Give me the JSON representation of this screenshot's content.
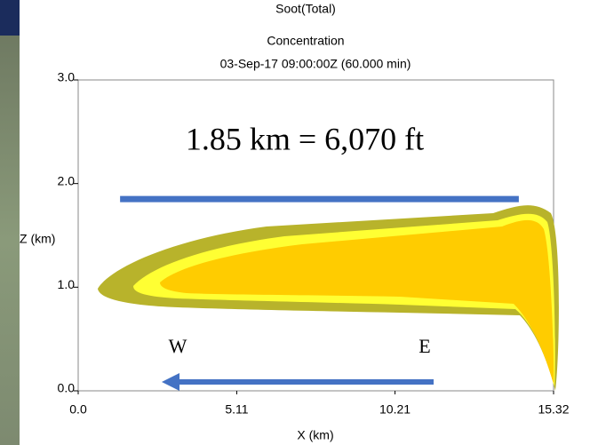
{
  "chart_data": {
    "type": "plume",
    "title": "Soot(Total)",
    "subtitle": "Concentration",
    "timestamp": "03-Sep-17 09:00:00Z (60.000 min)",
    "x_label": "X (km)",
    "y_label": "Z (km)",
    "xlim": [
      0,
      15.32
    ],
    "ylim": [
      0,
      3
    ],
    "xticks": [
      {
        "value": 0,
        "label": "0.0"
      },
      5.11,
      10.21,
      15.32
    ],
    "yticks": [
      {
        "value": 0,
        "label": "0.0"
      },
      {
        "value": 1,
        "label": "1.0"
      },
      {
        "value": 2,
        "label": "2.0"
      },
      {
        "value": 3,
        "label": "3.0"
      }
    ],
    "annotation": "1.85 km = 6,070 ft",
    "reference_line": {
      "value": 1.85,
      "x": [
        1.35,
        14.2
      ],
      "color": "#4472c4"
    },
    "direction_labels": [
      "W",
      "E"
    ]
  }
}
